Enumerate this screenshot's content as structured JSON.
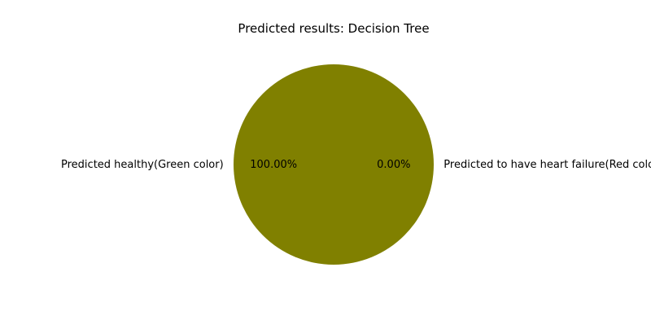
{
  "chart_data": {
    "type": "pie",
    "title": "Predicted results: Decision Tree",
    "slices": [
      {
        "label": "Predicted healthy(Green color)",
        "value": 100.0,
        "pct_label": "100.00%",
        "color": "#808000"
      },
      {
        "label": "Predicted to have heart failure(Red color)",
        "value": 0.0,
        "pct_label": "0.00%",
        "color": "#ff0000"
      }
    ],
    "start_angle_deg": 0,
    "direction": "counterclockwise",
    "legend": "none"
  }
}
